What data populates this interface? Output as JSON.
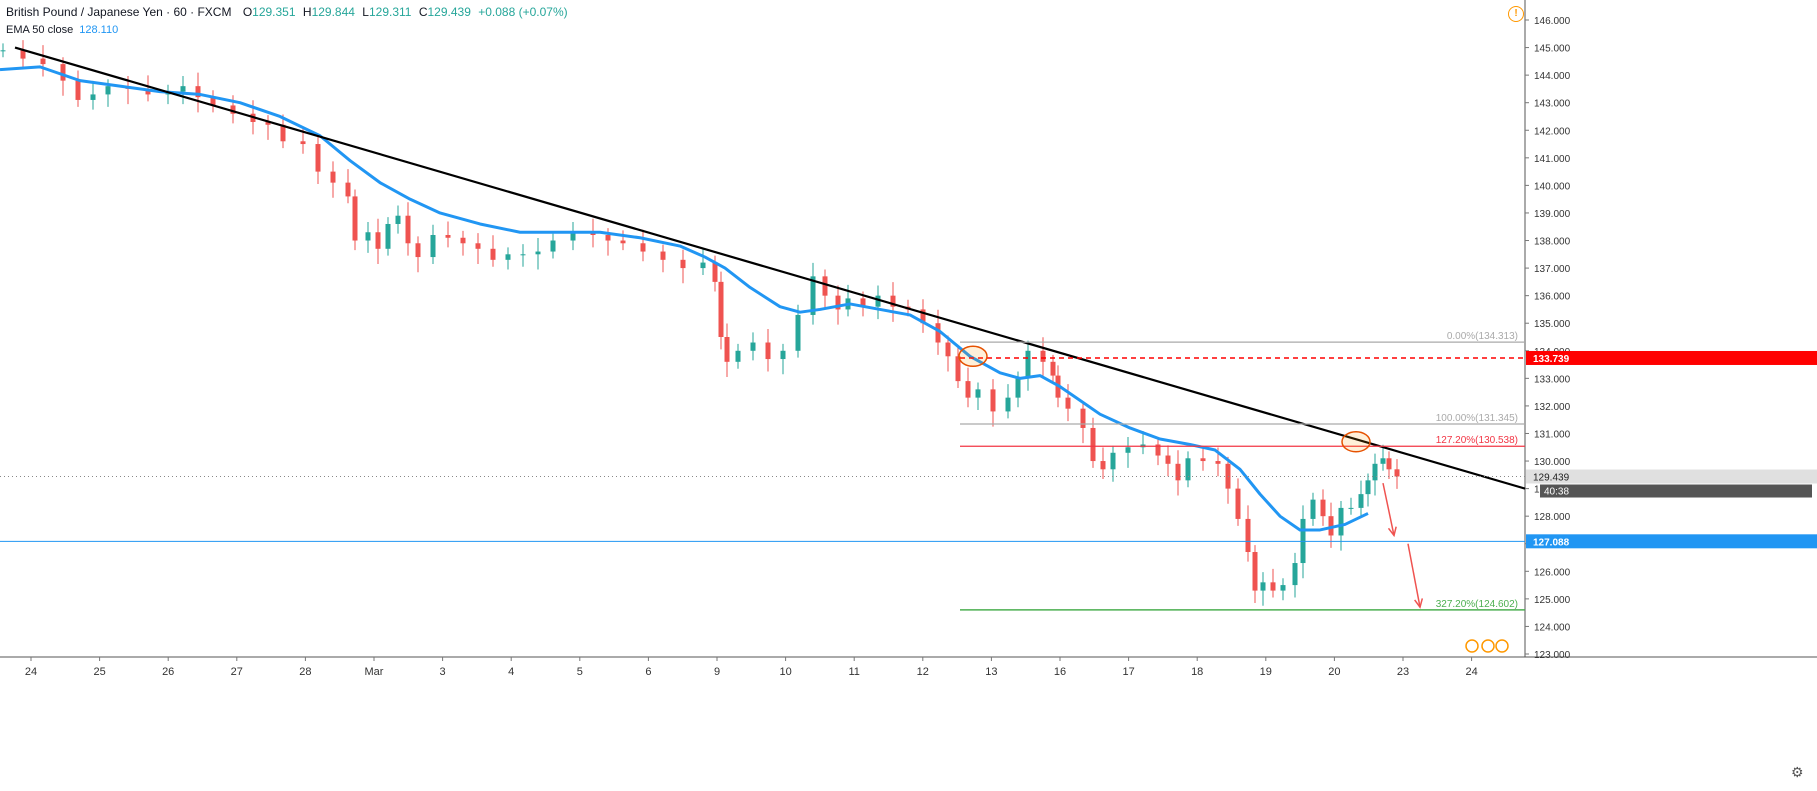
{
  "header": {
    "symbol": "British Pound / Japanese Yen · 60 · FXCM",
    "o_label": "O",
    "o": "129.351",
    "h_label": "H",
    "h": "129.844",
    "l_label": "L",
    "l": "129.311",
    "c_label": "C",
    "c": "129.439",
    "change": "+0.088 (+0.07%)"
  },
  "indicator": {
    "label": "EMA 50 close",
    "value": "128.110"
  },
  "chart_data": {
    "type": "candlestick",
    "y_range": [
      122.8,
      146.3
    ],
    "y_ticks": [
      123,
      124,
      125,
      126,
      127,
      128,
      129,
      130,
      131,
      132,
      133,
      134,
      135,
      136,
      137,
      138,
      139,
      140,
      141,
      142,
      143,
      144,
      145,
      146
    ],
    "x_ticks": [
      "24",
      "25",
      "26",
      "27",
      "28",
      "Mar",
      "3",
      "4",
      "5",
      "6",
      "9",
      "10",
      "11",
      "12",
      "13",
      "16",
      "17",
      "18",
      "19",
      "20",
      "23",
      "24"
    ],
    "price_series": [
      [
        0,
        144.9
      ],
      [
        20,
        144.6
      ],
      [
        40,
        144.4
      ],
      [
        60,
        143.8
      ],
      [
        75,
        143.1
      ],
      [
        90,
        143.3
      ],
      [
        105,
        143.6
      ],
      [
        125,
        143.5
      ],
      [
        145,
        143.3
      ],
      [
        165,
        143.4
      ],
      [
        180,
        143.6
      ],
      [
        195,
        143.2
      ],
      [
        210,
        142.9
      ],
      [
        230,
        142.6
      ],
      [
        250,
        142.3
      ],
      [
        265,
        142.2
      ],
      [
        280,
        141.6
      ],
      [
        300,
        141.5
      ],
      [
        315,
        140.5
      ],
      [
        330,
        140.1
      ],
      [
        345,
        139.6
      ],
      [
        352,
        138.0
      ],
      [
        365,
        138.3
      ],
      [
        375,
        137.7
      ],
      [
        385,
        138.6
      ],
      [
        395,
        138.9
      ],
      [
        405,
        137.9
      ],
      [
        415,
        137.4
      ],
      [
        430,
        138.2
      ],
      [
        445,
        138.1
      ],
      [
        460,
        137.9
      ],
      [
        475,
        137.7
      ],
      [
        490,
        137.3
      ],
      [
        505,
        137.5
      ],
      [
        520,
        137.5
      ],
      [
        535,
        137.6
      ],
      [
        550,
        138.0
      ],
      [
        570,
        138.3
      ],
      [
        590,
        138.2
      ],
      [
        605,
        138.0
      ],
      [
        620,
        137.9
      ],
      [
        640,
        137.6
      ],
      [
        660,
        137.3
      ],
      [
        680,
        137.0
      ],
      [
        700,
        137.2
      ],
      [
        712,
        136.5
      ],
      [
        718,
        134.5
      ],
      [
        724,
        133.6
      ],
      [
        735,
        134.0
      ],
      [
        750,
        134.3
      ],
      [
        765,
        133.7
      ],
      [
        780,
        134.0
      ],
      [
        795,
        135.3
      ],
      [
        810,
        136.7
      ],
      [
        822,
        136.0
      ],
      [
        835,
        135.5
      ],
      [
        845,
        135.9
      ],
      [
        860,
        135.6
      ],
      [
        875,
        136.0
      ],
      [
        890,
        135.6
      ],
      [
        905,
        135.5
      ],
      [
        920,
        135.0
      ],
      [
        935,
        134.3
      ],
      [
        945,
        133.8
      ],
      [
        955,
        132.9
      ],
      [
        965,
        132.3
      ],
      [
        975,
        132.6
      ],
      [
        990,
        131.8
      ],
      [
        1005,
        132.3
      ],
      [
        1015,
        133.0
      ],
      [
        1025,
        134.0
      ],
      [
        1040,
        133.6
      ],
      [
        1050,
        133.1
      ],
      [
        1055,
        132.3
      ],
      [
        1065,
        131.9
      ],
      [
        1080,
        131.2
      ],
      [
        1090,
        130.0
      ],
      [
        1100,
        129.7
      ],
      [
        1110,
        130.3
      ],
      [
        1125,
        130.5
      ],
      [
        1140,
        130.6
      ],
      [
        1155,
        130.2
      ],
      [
        1165,
        129.9
      ],
      [
        1175,
        129.3
      ],
      [
        1185,
        130.1
      ],
      [
        1200,
        130.0
      ],
      [
        1215,
        129.9
      ],
      [
        1225,
        129.0
      ],
      [
        1235,
        127.9
      ],
      [
        1245,
        126.7
      ],
      [
        1252,
        125.3
      ],
      [
        1260,
        125.6
      ],
      [
        1270,
        125.3
      ],
      [
        1280,
        125.5
      ],
      [
        1292,
        126.3
      ],
      [
        1300,
        127.9
      ],
      [
        1310,
        128.6
      ],
      [
        1320,
        128.0
      ],
      [
        1328,
        127.3
      ],
      [
        1338,
        128.3
      ],
      [
        1348,
        128.3
      ],
      [
        1358,
        128.8
      ],
      [
        1365,
        129.3
      ],
      [
        1372,
        129.9
      ],
      [
        1380,
        130.1
      ],
      [
        1386,
        129.7
      ],
      [
        1394,
        129.44
      ]
    ],
    "ema_series": [
      [
        0,
        144.2
      ],
      [
        40,
        144.3
      ],
      [
        80,
        143.8
      ],
      [
        120,
        143.6
      ],
      [
        160,
        143.4
      ],
      [
        200,
        143.3
      ],
      [
        240,
        143.0
      ],
      [
        280,
        142.5
      ],
      [
        320,
        141.8
      ],
      [
        350,
        140.9
      ],
      [
        380,
        140.1
      ],
      [
        410,
        139.5
      ],
      [
        440,
        139.0
      ],
      [
        480,
        138.6
      ],
      [
        520,
        138.3
      ],
      [
        560,
        138.3
      ],
      [
        600,
        138.3
      ],
      [
        640,
        138.1
      ],
      [
        680,
        137.8
      ],
      [
        705,
        137.4
      ],
      [
        725,
        137.0
      ],
      [
        750,
        136.3
      ],
      [
        780,
        135.6
      ],
      [
        800,
        135.4
      ],
      [
        820,
        135.5
      ],
      [
        850,
        135.7
      ],
      [
        880,
        135.5
      ],
      [
        910,
        135.3
      ],
      [
        940,
        134.7
      ],
      [
        970,
        133.8
      ],
      [
        1000,
        133.2
      ],
      [
        1020,
        133.0
      ],
      [
        1040,
        133.1
      ],
      [
        1060,
        132.7
      ],
      [
        1080,
        132.2
      ],
      [
        1100,
        131.7
      ],
      [
        1130,
        131.2
      ],
      [
        1160,
        130.8
      ],
      [
        1190,
        130.6
      ],
      [
        1215,
        130.4
      ],
      [
        1240,
        129.7
      ],
      [
        1260,
        128.8
      ],
      [
        1280,
        128.0
      ],
      [
        1300,
        127.5
      ],
      [
        1320,
        127.5
      ],
      [
        1345,
        127.7
      ],
      [
        1368,
        128.1
      ]
    ],
    "trendline": {
      "from": [
        15,
        145.0
      ],
      "to": [
        1525,
        129.0
      ]
    },
    "fib_levels": [
      {
        "label": "0.00%(134.313)",
        "value": 134.313
      },
      {
        "label": "100.00%(131.345)",
        "value": 131.345
      },
      {
        "label": "127.20%(130.538)",
        "value": 130.538
      },
      {
        "label": "327.20%(124.602)",
        "value": 124.602
      }
    ],
    "horizontal_levels": [
      {
        "label": "133.739",
        "value": 133.739,
        "style": "dashed",
        "color": "#ff0000"
      },
      {
        "label": "127.088",
        "value": 127.088,
        "style": "solid",
        "color": "#2196f3"
      }
    ],
    "last_price": {
      "label": "129.439",
      "value": 129.439
    },
    "countdown": "40:38",
    "markers": [
      {
        "center": [
          973,
          133.8
        ]
      },
      {
        "center": [
          1356,
          130.7
        ]
      }
    ],
    "arrows": [
      {
        "from": [
          1383,
          129.2
        ],
        "to": [
          1394,
          127.3
        ]
      },
      {
        "from": [
          1408,
          127.0
        ],
        "to": [
          1420,
          124.7
        ]
      }
    ],
    "colors": {
      "up": "#26a69a",
      "down": "#ef5350",
      "ema": "#2196f3",
      "trend": "#000000",
      "fib": "#aaaaaa",
      "fib127": "#f23645",
      "fib327": "#4caf50"
    }
  }
}
